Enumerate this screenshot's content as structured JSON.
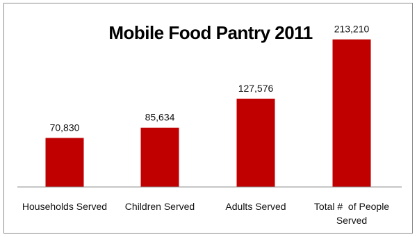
{
  "chart_data": {
    "type": "bar",
    "title": "Mobile Food Pantry 2011",
    "categories": [
      "Households Served",
      "Children Served",
      "Adults Served",
      "Total # of People Served"
    ],
    "category_lines": [
      [
        "Households Served"
      ],
      [
        "Children Served"
      ],
      [
        "Adults Served"
      ],
      [
        "Total #  of People",
        "Served"
      ]
    ],
    "values": [
      70830,
      85634,
      127576,
      213210
    ],
    "data_labels": [
      "70,830",
      "85,634",
      "127,576",
      "213,210"
    ],
    "ylim": [
      0,
      240000
    ],
    "grid": false,
    "legend": "none",
    "bar_color": "#C00000"
  }
}
